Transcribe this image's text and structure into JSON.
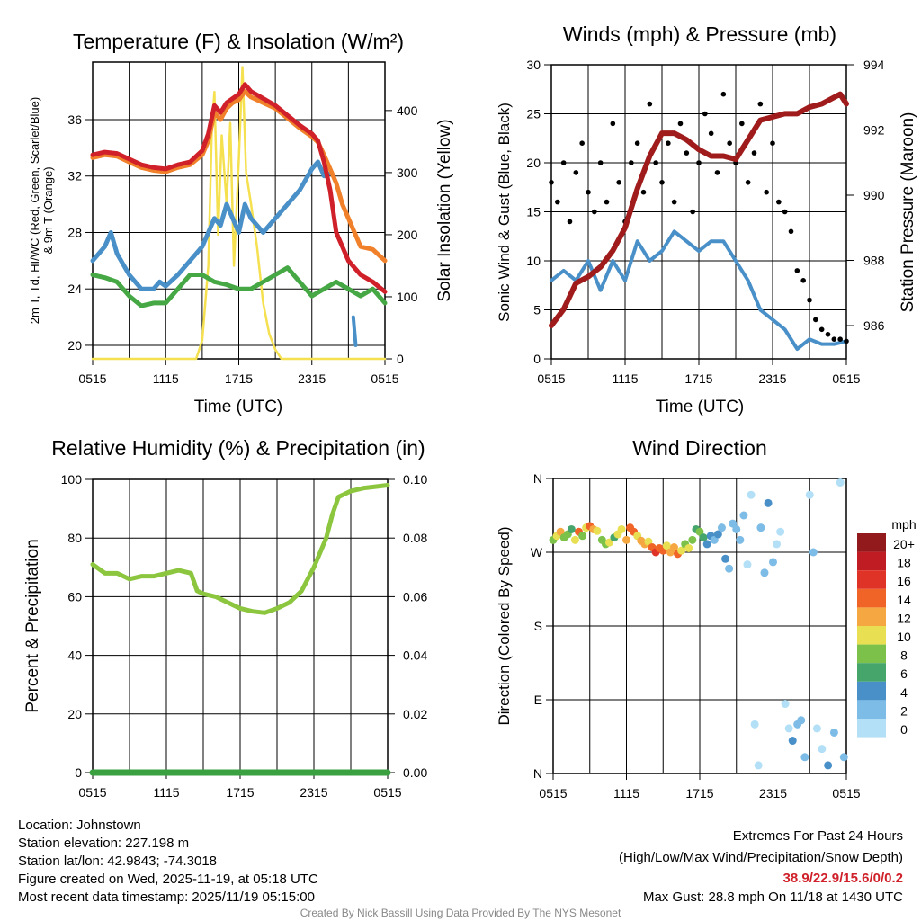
{
  "footer": {
    "location": "Location: Johnstown",
    "elevation": "Station elevation: 227.198 m",
    "latlon": "Station lat/lon: 42.9843; -74.3018",
    "created": "Figure created on Wed, 2025-11-19, at 05:18 UTC",
    "recent": "Most recent data timestamp: 2025/11/19 05:15:00",
    "extremes_title": "Extremes For Past 24 Hours",
    "extremes_sub": "(High/Low/Max Wind/Precipitation/Snow Depth)",
    "extremes_values": "38.9/22.9/15.6/0/0.2",
    "max_gust": "Max Gust: 28.8 mph On 11/18 at 1430 UTC",
    "credit": "Created By Nick Bassill Using Data Provided By The NYS Mesonet"
  },
  "colors": {
    "red": "#d0202a",
    "orange": "#f0802a",
    "blue": "#4a90c8",
    "green": "#45a845",
    "yellow": "#f5e050",
    "maroon": "#a01c1c",
    "gust": "#000000",
    "rh": "#8cc63f",
    "precip": "#3aa040"
  },
  "chart_data": [
    {
      "type": "line",
      "title": "Temperature (F) & Insolation (W/m²)",
      "xlabel": "Time (UTC)",
      "ylabel": [
        "2m T, Td, HI/WC (Red, Green, Scarlet/Blue)",
        "& 9m T (Orange)"
      ],
      "ylabel_right": "Solar Insolation (Yellow)",
      "xticks": [
        "0515",
        "1115",
        "1715",
        "2315",
        "0515"
      ],
      "yticks": [
        "20",
        "24",
        "28",
        "32",
        "36"
      ],
      "yticks_right": [
        "0",
        "100",
        "200",
        "300",
        "400"
      ],
      "ylim": [
        19,
        40
      ],
      "ylim_right": [
        0,
        478
      ],
      "xlim_hours": [
        0,
        24
      ],
      "grid": true,
      "series": [
        {
          "name": "2m T",
          "color": "red",
          "x": [
            0,
            1,
            2,
            3,
            4,
            5,
            6,
            7,
            8,
            9,
            9.5,
            10,
            10.5,
            11,
            11.5,
            12,
            12.5,
            13,
            14,
            15,
            16,
            17,
            18,
            18.5,
            19,
            19.5,
            20,
            20.5,
            21,
            22,
            23,
            24
          ],
          "y": [
            33.5,
            33.7,
            33.6,
            33.2,
            32.8,
            32.6,
            32.5,
            32.8,
            33,
            33.8,
            35,
            37,
            36.5,
            37.2,
            37.5,
            37.8,
            38.5,
            38,
            37.5,
            37,
            36.3,
            35.6,
            35,
            34.5,
            33,
            31,
            28,
            27,
            26,
            25,
            24.5,
            23.8
          ]
        },
        {
          "name": "9m T",
          "color": "orange",
          "x": [
            0,
            1,
            2,
            3,
            4,
            5,
            6,
            7,
            8,
            9,
            9.5,
            10,
            10.5,
            11,
            11.5,
            12,
            12.5,
            13,
            14,
            15,
            16,
            17,
            18,
            18.5,
            19,
            19.5,
            20,
            20.5,
            21,
            22,
            23,
            24
          ],
          "y": [
            33.3,
            33.5,
            33.4,
            33,
            32.6,
            32.4,
            32.3,
            32.6,
            32.8,
            33.5,
            34.5,
            36.5,
            36,
            36.8,
            37.2,
            37.4,
            38,
            37.6,
            37.2,
            36.8,
            36.1,
            35.4,
            34.8,
            34.4,
            33.5,
            32.5,
            31.5,
            30,
            29,
            27,
            26.8,
            26
          ]
        },
        {
          "name": "HI/WC",
          "color": "blue",
          "x": [
            0,
            0.5,
            1,
            1.5,
            2,
            3,
            4,
            5,
            5.5,
            6,
            7,
            8,
            9,
            9.5,
            10,
            10.5,
            11,
            12,
            12.5,
            13,
            14,
            15,
            16,
            17,
            18,
            18.5,
            19,
            19.5
          ],
          "y": [
            26,
            26.5,
            27,
            28,
            26.5,
            25,
            24,
            24,
            24.5,
            24.2,
            25,
            26,
            27,
            28,
            29,
            28.5,
            30,
            28,
            30,
            29,
            28,
            29,
            30,
            31,
            32.5,
            33,
            32,
            32.2
          ]
        },
        {
          "name": "Td",
          "color": "green",
          "x": [
            0,
            1,
            2,
            2.5,
            3,
            4,
            5,
            6,
            7,
            8,
            9,
            10,
            11,
            12,
            13,
            14,
            15,
            16,
            17,
            18,
            19,
            20,
            21,
            22,
            23,
            24
          ],
          "y": [
            25,
            24.8,
            24.5,
            24,
            23.5,
            22.8,
            23,
            23,
            24,
            25,
            25,
            24.5,
            24.3,
            24,
            24,
            24.5,
            25,
            25.5,
            24.5,
            23.5,
            24,
            24.5,
            24,
            23.5,
            24,
            23
          ]
        },
        {
          "name": "Solar Insolation",
          "color": "yellow",
          "axis": "right",
          "x": [
            0,
            8.5,
            9,
            9.5,
            9.8,
            10,
            10.3,
            10.6,
            11,
            11.3,
            11.6,
            12,
            12.3,
            12.6,
            13,
            13.5,
            14,
            14.5,
            15,
            15.5,
            24
          ],
          "y": [
            0,
            0,
            30,
            150,
            380,
            430,
            200,
            360,
            250,
            380,
            150,
            320,
            470,
            300,
            250,
            180,
            90,
            40,
            15,
            0,
            0
          ]
        }
      ],
      "extra_blue_segment": {
        "x": [
          21.4,
          21.5,
          21.6
        ],
        "y": [
          22,
          21,
          20
        ]
      }
    },
    {
      "type": "line",
      "title": "Winds (mph) & Pressure (mb)",
      "xlabel": "Time (UTC)",
      "ylabel": "Sonic Wind & Gust (Blue, Black)",
      "ylabel_right": "Station Pressure (Maroon)",
      "xticks": [
        "0515",
        "1115",
        "1715",
        "2315",
        "0515"
      ],
      "yticks": [
        "0",
        "5",
        "10",
        "15",
        "20",
        "25",
        "30"
      ],
      "yticks_right": [
        "986",
        "988",
        "990",
        "992",
        "994"
      ],
      "ylim": [
        0,
        30
      ],
      "ylim_right": [
        985,
        994
      ],
      "grid": true,
      "series": [
        {
          "name": "Sonic Wind",
          "color": "blue",
          "x": [
            0,
            1,
            2,
            3,
            4,
            5,
            6,
            7,
            8,
            9,
            10,
            11,
            12,
            13,
            14,
            15,
            16,
            17,
            18,
            19,
            20,
            21,
            22,
            23,
            24
          ],
          "y": [
            8,
            9,
            8,
            10,
            7,
            10,
            8,
            12,
            10,
            11,
            13,
            12,
            11,
            12,
            12,
            10,
            8,
            5,
            4,
            3,
            1,
            2,
            1.5,
            1.5,
            1.8
          ]
        },
        {
          "name": "Gust",
          "color": "gust",
          "style": "points",
          "x_step_hours": 0.5,
          "y": [
            18,
            16,
            20,
            14,
            19,
            22,
            17,
            15,
            20,
            16,
            24,
            18,
            14,
            20,
            22,
            17,
            26,
            20,
            18,
            22,
            16,
            24,
            21,
            15,
            20,
            25,
            23,
            19,
            27,
            22,
            20,
            24,
            18,
            21,
            26,
            17,
            22,
            16,
            15,
            13,
            9,
            8,
            6,
            4,
            3,
            2.5,
            2,
            2,
            1.8
          ]
        },
        {
          "name": "Station Pressure",
          "color": "maroon",
          "axis": "right",
          "x": [
            0,
            1,
            2,
            3,
            4,
            5,
            6,
            7,
            8,
            9,
            10,
            11,
            12,
            13,
            14,
            15,
            16,
            17,
            18,
            19,
            20,
            21,
            22,
            23,
            23.5,
            24
          ],
          "y": [
            986,
            986.5,
            987.3,
            987.5,
            987.8,
            988.3,
            989,
            990.2,
            991.2,
            991.9,
            991.9,
            991.7,
            991.4,
            991.2,
            991.2,
            991.1,
            991.7,
            992.3,
            992.4,
            992.5,
            992.5,
            992.7,
            992.8,
            993,
            993.1,
            992.8
          ]
        }
      ]
    },
    {
      "type": "line",
      "title": "Relative Humidity (%) & Precipitation (in)",
      "ylabel": "Percent & Precipitation",
      "xticks": [
        "0515",
        "1115",
        "1715",
        "2315",
        "0515"
      ],
      "yticks": [
        "0",
        "20",
        "40",
        "60",
        "80",
        "100"
      ],
      "yticks_right": [
        "0.00",
        "0.02",
        "0.04",
        "0.06",
        "0.08",
        "0.10"
      ],
      "ylim": [
        0,
        100
      ],
      "ylim_right": [
        0,
        0.1
      ],
      "grid": true,
      "series": [
        {
          "name": "Relative Humidity",
          "color": "rh",
          "x": [
            0,
            1,
            2,
            3,
            4,
            5,
            6,
            7,
            8,
            8.5,
            9,
            10,
            11,
            12,
            13,
            14,
            15,
            16,
            17,
            18,
            19,
            19.5,
            20,
            21,
            22,
            23,
            24
          ],
          "y": [
            71,
            68,
            68,
            66,
            67,
            67,
            68,
            69,
            68,
            62,
            61,
            60,
            58,
            56,
            55,
            54.5,
            56,
            58,
            62,
            70,
            80,
            88,
            94,
            96,
            97,
            97.5,
            98
          ]
        },
        {
          "name": "Precipitation",
          "color": "precip",
          "axis": "right",
          "x": [
            0,
            24
          ],
          "y": [
            0,
            0
          ]
        }
      ]
    },
    {
      "type": "scatter",
      "title": "Wind Direction",
      "ylabel": "Direction (Colored By Speed)",
      "xticks": [
        "0515",
        "1115",
        "1715",
        "2315",
        "0515"
      ],
      "yticks": [
        "N",
        "E",
        "S",
        "W",
        "N"
      ],
      "ylim": [
        0,
        360
      ],
      "grid": true,
      "legend": {
        "title": "mph",
        "placement": "right",
        "labels": [
          "20+",
          "18",
          "16",
          "14",
          "12",
          "10",
          "8",
          "6",
          "4",
          "2",
          "0"
        ],
        "colors": [
          "#921a1d",
          "#c01c24",
          "#e03328",
          "#f06428",
          "#f5a742",
          "#e8df52",
          "#7cc24a",
          "#45a56b",
          "#4a90c8",
          "#7dbce6",
          "#b3e0f7"
        ]
      },
      "points": [
        [
          0,
          285,
          8
        ],
        [
          0.3,
          290,
          10
        ],
        [
          0.6,
          295,
          12
        ],
        [
          0.9,
          288,
          9
        ],
        [
          1.2,
          292,
          8
        ],
        [
          1.5,
          298,
          6
        ],
        [
          1.8,
          285,
          10
        ],
        [
          2.1,
          295,
          14
        ],
        [
          2.4,
          290,
          8
        ],
        [
          2.7,
          300,
          10
        ],
        [
          3,
          302,
          14
        ],
        [
          3.3,
          298,
          12
        ],
        [
          3.6,
          296,
          11
        ],
        [
          4,
          285,
          8
        ],
        [
          4.3,
          280,
          8
        ],
        [
          4.6,
          282,
          10
        ],
        [
          5,
          288,
          7
        ],
        [
          5.3,
          292,
          10
        ],
        [
          5.6,
          298,
          10
        ],
        [
          6,
          285,
          13
        ],
        [
          6.3,
          300,
          15
        ],
        [
          6.6,
          295,
          14
        ],
        [
          6.9,
          290,
          10
        ],
        [
          7.2,
          284,
          12
        ],
        [
          7.5,
          280,
          13
        ],
        [
          7.8,
          283,
          11
        ],
        [
          8.1,
          276,
          14
        ],
        [
          8.4,
          270,
          17
        ],
        [
          8.7,
          275,
          15
        ],
        [
          9,
          272,
          14
        ],
        [
          9.3,
          278,
          10
        ],
        [
          9.6,
          270,
          12
        ],
        [
          9.9,
          276,
          13
        ],
        [
          10.2,
          268,
          15
        ],
        [
          10.5,
          272,
          10
        ],
        [
          10.8,
          280,
          8
        ],
        [
          11.1,
          275,
          11
        ],
        [
          11.4,
          285,
          8
        ],
        [
          11.7,
          298,
          7
        ],
        [
          12,
          295,
          8
        ],
        [
          12.3,
          288,
          7
        ],
        [
          12.6,
          280,
          4
        ],
        [
          12.9,
          290,
          5
        ],
        [
          13.2,
          285,
          3
        ],
        [
          13.5,
          292,
          4
        ],
        [
          13.8,
          300,
          3
        ],
        [
          14.1,
          262,
          4
        ],
        [
          14.4,
          250,
          2
        ],
        [
          14.7,
          305,
          3
        ],
        [
          15,
          298,
          3
        ],
        [
          15.3,
          285,
          2
        ],
        [
          15.6,
          315,
          2
        ],
        [
          15.9,
          255,
          1
        ],
        [
          16.2,
          340,
          0
        ],
        [
          16.5,
          60,
          0
        ],
        [
          16.8,
          10,
          0
        ],
        [
          17,
          300,
          2
        ],
        [
          17.3,
          245,
          3
        ],
        [
          17.6,
          330,
          4
        ],
        [
          18,
          258,
          3
        ],
        [
          18.3,
          280,
          1
        ],
        [
          18.6,
          295,
          1
        ],
        [
          19,
          85,
          1
        ],
        [
          19.3,
          55,
          1
        ],
        [
          19.6,
          40,
          4
        ],
        [
          20,
          60,
          3
        ],
        [
          20.3,
          65,
          3
        ],
        [
          20.6,
          20,
          3
        ],
        [
          21,
          340,
          1
        ],
        [
          21.3,
          270,
          2
        ],
        [
          21.6,
          55,
          1
        ],
        [
          22,
          30,
          0
        ],
        [
          22.5,
          10,
          4
        ],
        [
          23,
          50,
          2
        ],
        [
          23.5,
          355,
          1
        ],
        [
          23.8,
          20,
          3
        ]
      ]
    }
  ]
}
